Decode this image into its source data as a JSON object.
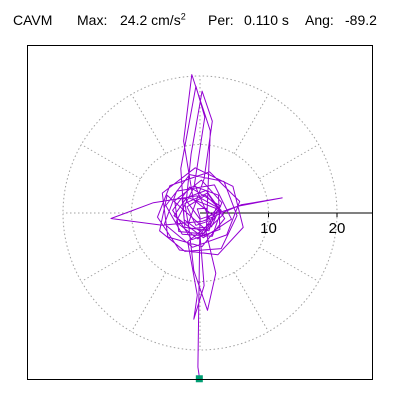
{
  "header": {
    "station": "CAVM",
    "max_label": "Max:",
    "max_value": "24.2",
    "max_unit_base": "cm/s",
    "max_unit_exp": "2",
    "per_label": "Per:",
    "per_value": "0.110 s",
    "ang_label": "Ang:",
    "ang_value": "-89.2"
  },
  "chart_data": {
    "type": "polar-trace",
    "title": "",
    "xlabel": "",
    "ylabel": "",
    "max_amplitude": 24.2,
    "max_unit": "cm/s²",
    "period_s": 0.11,
    "angle_deg": -89.2,
    "radial_ticks": [
      10,
      20
    ],
    "radial_tick_labels": [
      "10",
      "20"
    ],
    "range": [
      0,
      26
    ],
    "grid": true,
    "grid_circles": [
      10,
      20
    ],
    "spoke_angles_deg": [
      30,
      60,
      90,
      120,
      150,
      180,
      210,
      240,
      270,
      300,
      330
    ],
    "series": [
      {
        "points": [
          [
            0.8,
            -1.1
          ],
          [
            2.5,
            0.6
          ],
          [
            -1.9,
            2.3
          ],
          [
            -3.8,
            -0.4
          ],
          [
            0.5,
            -3.6
          ],
          [
            4.6,
            -0.9
          ],
          [
            2.1,
            4.1
          ],
          [
            -3.4,
            3.2
          ],
          [
            -5.2,
            -1.6
          ],
          [
            -1.1,
            -5.0
          ],
          [
            3.9,
            -3.2
          ],
          [
            5.8,
            1.7
          ],
          [
            1.4,
            6.0
          ],
          [
            -4.4,
            4.0
          ],
          [
            -6.2,
            -0.6
          ],
          [
            -3.0,
            -5.4
          ],
          [
            2.6,
            -6.1
          ],
          [
            6.3,
            -2.1
          ],
          [
            4.8,
            3.9
          ],
          [
            -0.7,
            6.6
          ],
          [
            -5.5,
            2.9
          ],
          [
            -4.7,
            -3.5
          ],
          [
            0.3,
            -4.9
          ],
          [
            3.6,
            -0.8
          ],
          [
            1.1,
            2.9
          ],
          [
            -2.2,
            1.4
          ],
          [
            -1.6,
            -2.3
          ],
          [
            1.7,
            -2.0
          ],
          [
            3.2,
            1.5
          ],
          [
            0.2,
            4.8
          ],
          [
            -3.7,
            1.8
          ],
          [
            -3.1,
            -2.7
          ],
          [
            0.9,
            -3.1
          ],
          [
            1.5,
            12.0
          ],
          [
            -1.2,
            20.2
          ],
          [
            -2.4,
            10.5
          ],
          [
            -1.0,
            2.0
          ],
          [
            2.2,
            -0.6
          ],
          [
            0.5,
            -3.0
          ],
          [
            -2.3,
            -1.0
          ],
          [
            -2.8,
            6.5
          ],
          [
            -0.6,
            18.5
          ],
          [
            0.7,
            14.0
          ],
          [
            -0.8,
            4.2
          ],
          [
            1.6,
            -1.4
          ],
          [
            -1.8,
            -4.2
          ],
          [
            -0.4,
            -12.0
          ],
          [
            -0.9,
            -15.5
          ],
          [
            0.6,
            -10.6
          ],
          [
            0.0,
            -3.2
          ],
          [
            3.0,
            1.0
          ],
          [
            -1.5,
            3.8
          ],
          [
            -4.0,
            0.4
          ],
          [
            -1.2,
            -3.9
          ],
          [
            2.9,
            -2.4
          ],
          [
            2.7,
            2.6
          ],
          [
            -0.8,
            3.9
          ],
          [
            -3.5,
            -1.3
          ],
          [
            -0.3,
            -3.8
          ],
          [
            3.4,
            -0.2
          ],
          [
            0.9,
            3.3
          ],
          [
            -2.6,
            2.0
          ],
          [
            -2.2,
            -2.1
          ],
          [
            1.3,
            -2.6
          ],
          [
            2.4,
            0.9
          ],
          [
            -0.5,
            2.5
          ],
          [
            -6.8,
            1.5
          ],
          [
            -13.0,
            -0.8
          ],
          [
            -5.5,
            -1.8
          ],
          [
            0.4,
            -1.2
          ],
          [
            6.0,
            1.2
          ],
          [
            12.0,
            2.2
          ],
          [
            5.5,
            1.0
          ],
          [
            0.0,
            -0.9
          ],
          [
            -2.0,
            1.8
          ],
          [
            -1.3,
            8.6
          ],
          [
            0.3,
            17.8
          ],
          [
            1.8,
            13.4
          ],
          [
            0.6,
            5.0
          ],
          [
            -1.7,
            -1.5
          ],
          [
            -0.9,
            -8.4
          ],
          [
            1.1,
            -14.2
          ],
          [
            2.3,
            -8.8
          ],
          [
            0.8,
            -2.4
          ],
          [
            -4.8,
            2.6
          ],
          [
            -5.9,
            -2.6
          ],
          [
            -2.2,
            -5.6
          ],
          [
            3.1,
            -5.2
          ],
          [
            5.4,
            -0.4
          ],
          [
            3.5,
            4.6
          ],
          [
            -1.5,
            5.6
          ],
          [
            -5.0,
            1.1
          ],
          [
            -2.6,
            -3.1
          ],
          [
            1.8,
            -3.4
          ],
          [
            3.1,
            0.4
          ],
          [
            0.8,
            2.6
          ],
          [
            -1.9,
            0.9
          ],
          [
            -0.6,
            -1.8
          ],
          [
            1.2,
            -1.2
          ],
          [
            0.9,
            0.7
          ],
          [
            -0.4,
            0.6
          ],
          [
            0.0,
            -0.6
          ],
          [
            -0.3,
            -22.5
          ],
          [
            -0.1,
            -23.9
          ]
        ]
      }
    ],
    "end_marker": [
      -0.1,
      -24.2
    ]
  },
  "colors": {
    "trace": "#9400d3",
    "marker": "#009e73",
    "grid": "#a0a0a0",
    "axis": "#000000",
    "frame": "#000000"
  }
}
